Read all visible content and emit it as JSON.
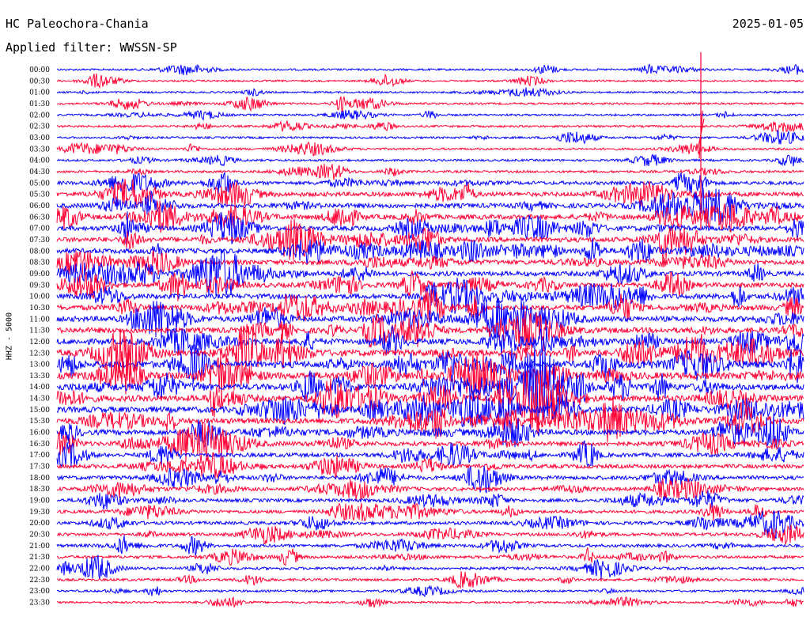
{
  "header": {
    "station": "HC Paleochora-Chania",
    "date": "2025-01-05",
    "filter": "Applied filter: WWSSN-SP"
  },
  "chart_data": {
    "type": "line",
    "title": "HC Paleochora-Chania",
    "ylabel": "HHZ - 5000",
    "row_labels": [
      "00:00",
      "00:30",
      "01:00",
      "01:30",
      "02:00",
      "02:30",
      "03:00",
      "03:30",
      "04:00",
      "04:30",
      "05:00",
      "05:30",
      "06:00",
      "06:30",
      "07:00",
      "07:30",
      "08:00",
      "08:30",
      "09:00",
      "09:30",
      "10:00",
      "10:30",
      "11:00",
      "11:30",
      "12:00",
      "12:30",
      "13:00",
      "13:30",
      "14:00",
      "14:30",
      "15:00",
      "15:30",
      "16:00",
      "16:30",
      "17:00",
      "17:30",
      "18:00",
      "18:30",
      "19:00",
      "19:30",
      "20:00",
      "20:30",
      "21:00",
      "21:30",
      "22:00",
      "22:30",
      "23:00",
      "23:30"
    ],
    "series_colors": [
      "#0000ff",
      "#ff0033"
    ],
    "activity_level": [
      0.12,
      0.1,
      0.1,
      0.12,
      0.14,
      0.14,
      0.14,
      0.14,
      0.16,
      0.2,
      0.4,
      0.55,
      0.6,
      0.62,
      0.6,
      0.62,
      0.65,
      0.6,
      0.6,
      0.62,
      0.66,
      0.7,
      0.72,
      0.75,
      0.8,
      0.9,
      0.95,
      0.95,
      0.85,
      0.85,
      0.8,
      0.75,
      0.7,
      0.55,
      0.5,
      0.48,
      0.45,
      0.4,
      0.38,
      0.35,
      0.35,
      0.32,
      0.32,
      0.3,
      0.25,
      0.2,
      0.15,
      0.12
    ],
    "grid": false
  }
}
